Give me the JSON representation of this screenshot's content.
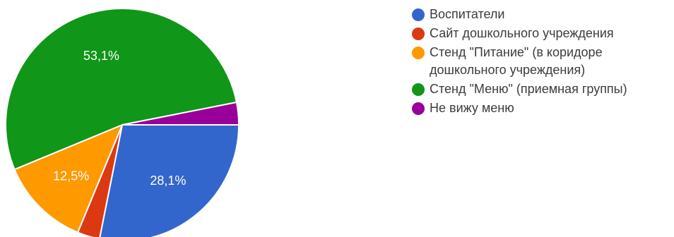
{
  "chart_data": {
    "type": "pie",
    "title": "",
    "slices": [
      {
        "label": "Воспитатели",
        "value": 28.1,
        "display": "28,1%",
        "color": "#3366cc"
      },
      {
        "label": "Сайт дошкольного учреждения",
        "value": 3.1,
        "display": "",
        "color": "#dc3912"
      },
      {
        "label": "Стенд \"Питание\" (в коридоре\nдошкольного учреждения)",
        "value": 12.5,
        "display": "12,5%",
        "color": "#ff9900"
      },
      {
        "label": "Стенд \"Меню\" (приемная группы)",
        "value": 53.1,
        "display": "53,1%",
        "color": "#109618"
      },
      {
        "label": "Не вижу меню",
        "value": 3.1,
        "display": "",
        "color": "#990099"
      }
    ],
    "legend_position": "right",
    "start": "3 o'clock, clockwise"
  }
}
